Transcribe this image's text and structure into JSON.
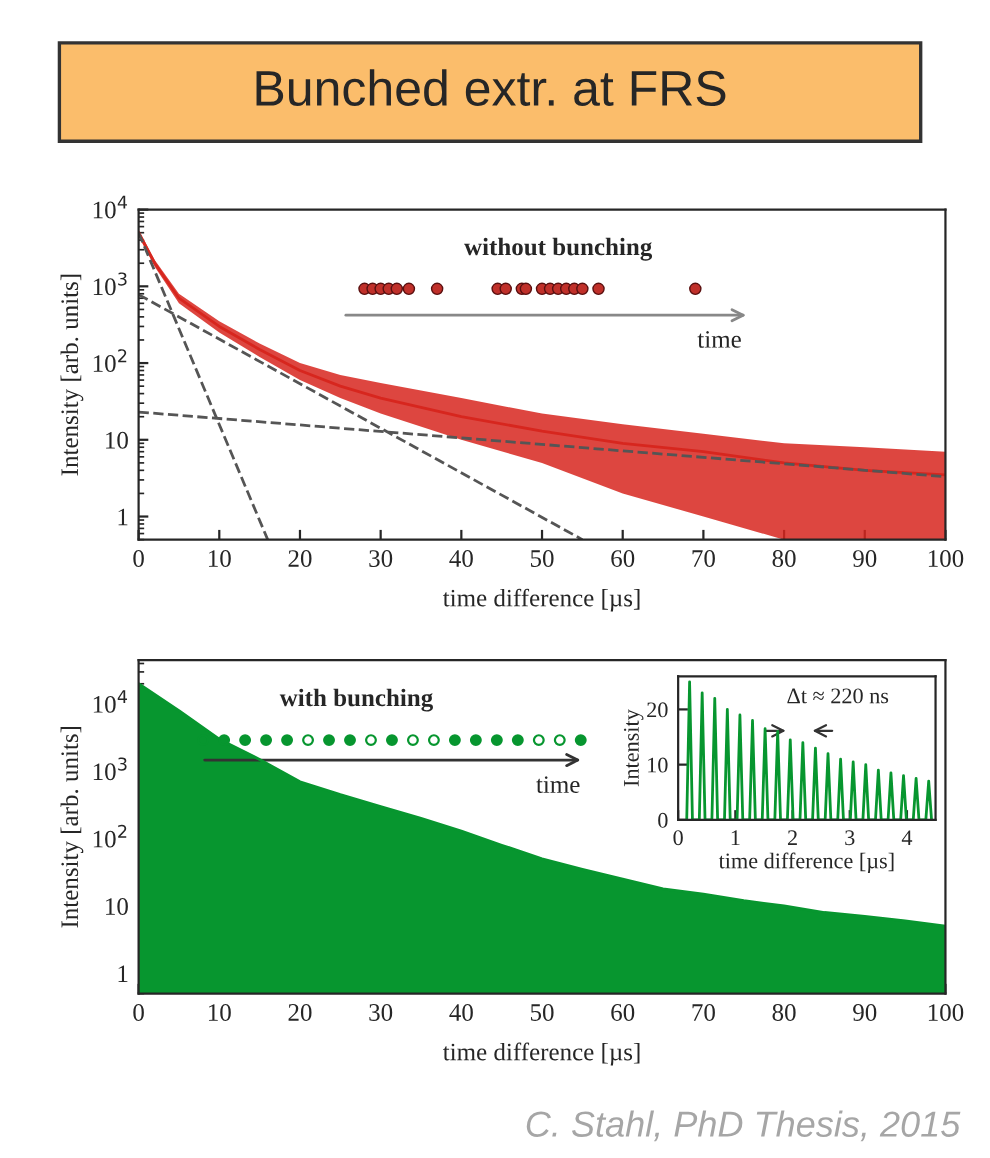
{
  "chart_data": [
    {
      "type": "line",
      "title": "Bunched extr. at FRS",
      "xlabel": "time difference [µs]",
      "ylabel": "Intensity [arb. units]",
      "log": "y",
      "xlim": [
        0,
        100
      ],
      "ylim": [
        0.5,
        10000
      ],
      "xticks": [
        0,
        10,
        20,
        30,
        40,
        50,
        60,
        70,
        80,
        90,
        100
      ],
      "yticks": [
        1,
        10,
        {
          "value": 100,
          "label": "10$^{2}$"
        },
        {
          "value": 1000,
          "label": "10$^{3}$"
        },
        {
          "value": 10000,
          "label": "10$^{4}$"
        }
      ],
      "grid": false,
      "legend": false,
      "annotations": [
        "without bunching",
        "time"
      ],
      "series": [
        {
          "color": "#d7261e",
          "x": [
            0,
            2,
            5,
            10,
            15,
            20,
            25,
            30,
            40,
            50,
            60,
            70,
            80,
            90,
            100
          ],
          "values": [
            5000,
            2000,
            700,
            300,
            150,
            80,
            50,
            35,
            20,
            13,
            9,
            7,
            5,
            4,
            3.5
          ],
          "lower": [
            4500,
            1800,
            600,
            250,
            120,
            60,
            35,
            22,
            10,
            5,
            2,
            1,
            0.5,
            0.5,
            0.5
          ],
          "upper": [
            5500,
            2200,
            800,
            350,
            180,
            100,
            70,
            55,
            35,
            22,
            16,
            12,
            9,
            8,
            7
          ]
        },
        {
          "color": "#555555",
          "line_style": "dashed",
          "x": [
            0,
            16
          ],
          "values": [
            5000,
            0.5
          ]
        },
        {
          "color": "#555555",
          "line_style": "dashed",
          "x": [
            0,
            55
          ],
          "values": [
            780,
            0.5
          ]
        },
        {
          "color": "#555555",
          "line_style": "dashed",
          "x": [
            0,
            100
          ],
          "values": [
            23,
            3.3
          ]
        }
      ]
    },
    {
      "type": "area",
      "xlabel": "time difference [µs]",
      "ylabel": "Intensity [arb. units]",
      "log": "y",
      "xlim": [
        0,
        100
      ],
      "ylim": [
        0.5,
        45000
      ],
      "xticks": [
        0,
        10,
        20,
        30,
        40,
        50,
        60,
        70,
        80,
        90,
        100
      ],
      "yticks": [
        1,
        10,
        {
          "value": 100,
          "label": "10$^{2}$"
        },
        {
          "value": 1000,
          "label": "10$^{3}$"
        },
        {
          "value": 10000,
          "label": "10$^{4}$"
        }
      ],
      "grid": false,
      "legend": false,
      "annotations": [
        "with bunching",
        "time",
        "C. Stahl, PhD Thesis, 2015"
      ],
      "series": [
        {
          "color": "#07962f",
          "x": [
            0,
            5,
            10,
            15,
            20,
            25,
            30,
            35,
            40,
            45,
            50,
            55,
            60,
            65,
            70,
            75,
            80,
            85,
            90,
            95,
            100
          ],
          "values": [
            20000,
            8000,
            3000,
            1500,
            700,
            450,
            300,
            200,
            130,
            80,
            50,
            35,
            25,
            18,
            15,
            12,
            10,
            8,
            7,
            6,
            5
          ]
        }
      ]
    },
    {
      "type": "line",
      "xlabel": "time difference [µs]",
      "ylabel": "Intensity",
      "xlim": [
        0,
        4.5
      ],
      "ylim": [
        0,
        26
      ],
      "xticks": [
        0,
        1,
        2,
        3,
        4
      ],
      "yticks": [
        0,
        10,
        20
      ],
      "grid": false,
      "legend": false,
      "annotations": [
        "Δt ≈ 220 ns"
      ],
      "series": [
        {
          "color": "#07962f",
          "x": [
            0.15,
            0.2,
            0.25,
            0.37,
            0.42,
            0.47,
            0.59,
            0.64,
            0.69,
            0.81,
            0.86,
            0.91,
            1.03,
            1.08,
            1.13,
            1.25,
            1.3,
            1.35,
            1.47,
            1.52,
            1.57,
            1.69,
            1.74,
            1.79,
            1.91,
            1.96,
            2.01,
            2.13,
            2.18,
            2.23,
            2.35,
            2.4,
            2.45,
            2.57,
            2.62,
            2.67,
            2.79,
            2.84,
            2.89,
            3.01,
            3.06,
            3.11,
            3.23,
            3.28,
            3.33,
            3.45,
            3.5,
            3.55,
            3.67,
            3.72,
            3.77,
            3.89,
            3.94,
            3.99,
            4.11,
            4.16,
            4.21,
            4.33,
            4.38,
            4.43
          ],
          "values": [
            0,
            25,
            0,
            0,
            23,
            0,
            0,
            22,
            0,
            0,
            20,
            0,
            0,
            19,
            0,
            0,
            18,
            0,
            0,
            16.5,
            0,
            0,
            16,
            0,
            0,
            14.5,
            0,
            0,
            14,
            0,
            0,
            13,
            0,
            0,
            12,
            0,
            0,
            11,
            0,
            0,
            10.5,
            0,
            0,
            10,
            0,
            0,
            9,
            0,
            0,
            8.5,
            0,
            0,
            8,
            0,
            0,
            7.5,
            0,
            0,
            7,
            0
          ]
        }
      ]
    }
  ]
}
